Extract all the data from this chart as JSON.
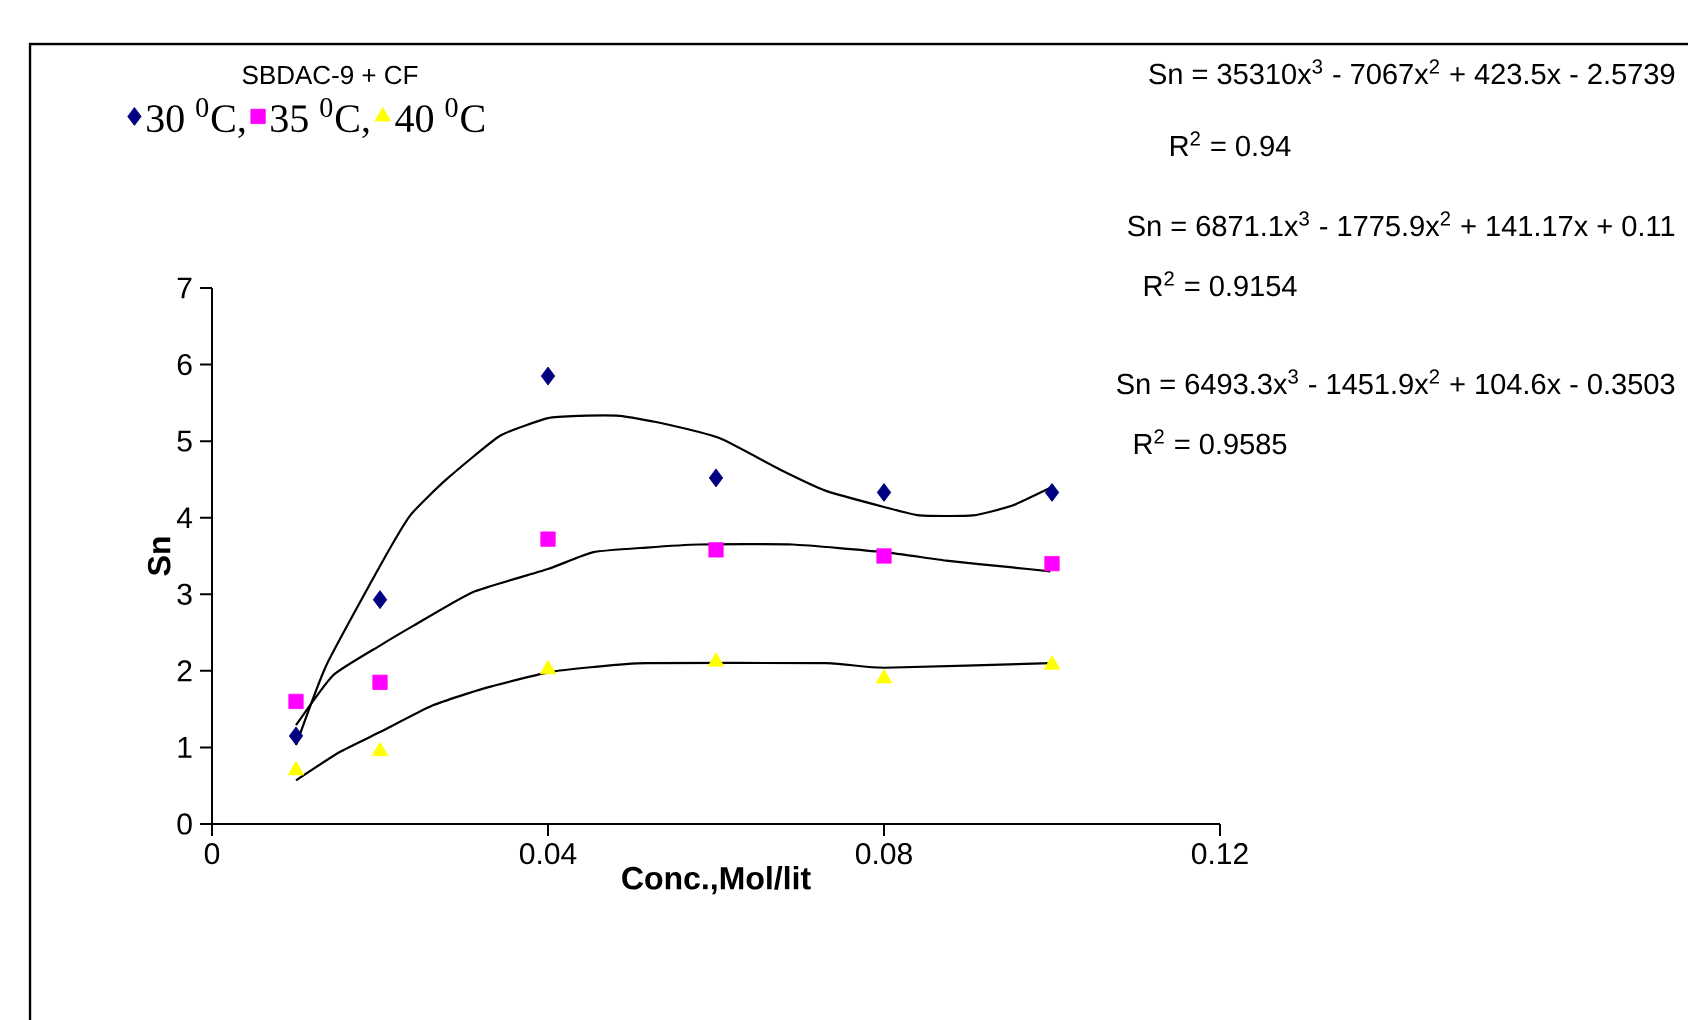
{
  "chart_data": {
    "type": "scatter",
    "title": "SBDAC-9 + CF",
    "xlabel": "Conc.,Mol/lit",
    "ylabel": "Sn",
    "x": [
      0.01,
      0.02,
      0.04,
      0.06,
      0.08,
      0.1
    ],
    "xlim": [
      0,
      0.12
    ],
    "xticks": [
      0,
      0.04,
      0.08,
      0.12
    ],
    "ylim": [
      0,
      7
    ],
    "yticks": [
      0,
      1,
      2,
      3,
      4,
      5,
      6,
      7
    ],
    "grid": false,
    "legend": "top left",
    "series": [
      {
        "name": "30 $^{0}$C,",
        "color": "#000080",
        "marker": "diamond",
        "values": [
          1.15,
          2.93,
          5.85,
          4.52,
          4.33,
          4.33
        ]
      },
      {
        "name": "35 $^{0}$C,",
        "color": "#ff00ff",
        "marker": "square",
        "values": [
          1.6,
          1.85,
          3.72,
          3.58,
          3.5,
          3.4
        ]
      },
      {
        "name": "40 $^{0}$C",
        "color": "#ffff00",
        "marker": "triangle",
        "values": [
          0.7,
          0.95,
          2.02,
          2.12,
          1.9,
          2.08
        ]
      },
      {
        "type": "line",
        "color": "#000000",
        "marker": "none",
        "x": [
          0.01,
          0.0136,
          0.02,
          0.0236,
          0.0279,
          0.0343,
          0.04,
          0.0438,
          0.0485,
          0.0533,
          0.0604,
          0.0676,
          0.0731,
          0.08,
          0.0842,
          0.0906,
          0.0953,
          0.0998
        ],
        "values": [
          1.03,
          2.07,
          3.37,
          4.03,
          4.5,
          5.07,
          5.3,
          5.33,
          5.33,
          5.24,
          5.04,
          4.63,
          4.35,
          4.14,
          4.03,
          4.03,
          4.16,
          4.39
        ]
      },
      {
        "type": "line",
        "color": "#000000",
        "marker": "none",
        "x": [
          0.01,
          0.0144,
          0.02,
          0.024,
          0.0311,
          0.04,
          0.0454,
          0.0517,
          0.058,
          0.0691,
          0.08,
          0.0874,
          0.0953,
          0.0998
        ],
        "values": [
          1.29,
          1.94,
          2.33,
          2.59,
          3.03,
          3.33,
          3.55,
          3.61,
          3.65,
          3.65,
          3.55,
          3.44,
          3.35,
          3.3
        ]
      },
      {
        "type": "line",
        "color": "#000000",
        "marker": "none",
        "x": [
          0.01,
          0.0152,
          0.02,
          0.0263,
          0.0327,
          0.04,
          0.0454,
          0.0517,
          0.0731,
          0.08,
          0.0998
        ],
        "values": [
          0.57,
          0.94,
          1.2,
          1.55,
          1.78,
          1.98,
          2.05,
          2.1,
          2.1,
          2.04,
          2.1
        ]
      }
    ],
    "annotations": [
      "Sn = 35310x$^{3}$ - 7067x$^{2}$ + 423.5x - 2.5739",
      "R$^{2}$ = 0.94",
      "Sn = 6871.1x$^{3}$ - 1775.9x$^{2}$ + 141.17x + 0.11",
      "R$^{2}$ = 0.9154",
      "Sn = 6493.3x$^{3}$ - 1451.9x$^{2}$ + 104.6x - 0.3503",
      "R$^{2}$ = 0.9585"
    ]
  }
}
